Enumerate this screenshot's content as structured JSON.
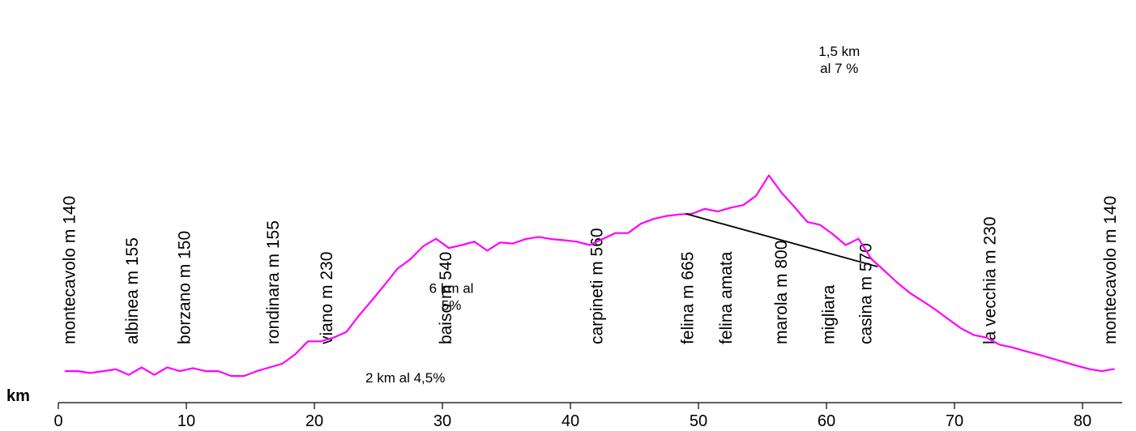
{
  "chart_data": {
    "type": "line",
    "title": "",
    "xlabel": "km",
    "ylabel": "",
    "xlim": [
      0,
      83
    ],
    "ylim": [
      0,
      1000
    ],
    "x_ticks": [
      "0",
      "10",
      "20",
      "30",
      "40",
      "50",
      "60",
      "70",
      "80"
    ],
    "grid": false,
    "line_color": "#ff00ff",
    "series": [
      {
        "points": [
          [
            0.5,
            140
          ],
          [
            1.5,
            140
          ],
          [
            2.5,
            135
          ],
          [
            3.5,
            140
          ],
          [
            4.5,
            145
          ],
          [
            5.5,
            130
          ],
          [
            6.5,
            150
          ],
          [
            7.5,
            130
          ],
          [
            8.5,
            150
          ],
          [
            9.5,
            140
          ],
          [
            10.5,
            148
          ],
          [
            11.5,
            140
          ],
          [
            12.5,
            140
          ],
          [
            13.5,
            127
          ],
          [
            14.5,
            127
          ],
          [
            15.5,
            140
          ],
          [
            16.5,
            150
          ],
          [
            17.5,
            160
          ],
          [
            18.5,
            185
          ],
          [
            19.5,
            220
          ],
          [
            20.5,
            220
          ],
          [
            21.5,
            230
          ],
          [
            22.5,
            245
          ],
          [
            23.5,
            290
          ],
          [
            24.5,
            330
          ],
          [
            25.5,
            372
          ],
          [
            26.5,
            415
          ],
          [
            27.5,
            440
          ],
          [
            28.5,
            475
          ],
          [
            29.5,
            495
          ],
          [
            30.5,
            470
          ],
          [
            31.5,
            478
          ],
          [
            32.5,
            487
          ],
          [
            33.5,
            463
          ],
          [
            34.5,
            485
          ],
          [
            35.5,
            482
          ],
          [
            36.5,
            494
          ],
          [
            37.5,
            500
          ],
          [
            38.5,
            494
          ],
          [
            39.5,
            491
          ],
          [
            40.5,
            487
          ],
          [
            41.5,
            478
          ],
          [
            42.5,
            494
          ],
          [
            43.5,
            510
          ],
          [
            44.5,
            510
          ],
          [
            45.5,
            535
          ],
          [
            46.5,
            548
          ],
          [
            47.5,
            556
          ],
          [
            48.5,
            560
          ],
          [
            49.5,
            562
          ],
          [
            50.5,
            575
          ],
          [
            51.5,
            568
          ],
          [
            52.5,
            578
          ],
          [
            53.5,
            585
          ],
          [
            54.5,
            610
          ],
          [
            55.5,
            665
          ],
          [
            56.5,
            618
          ],
          [
            57.5,
            580
          ],
          [
            58.5,
            540
          ],
          [
            59.5,
            532
          ],
          [
            60.5,
            507
          ],
          [
            61.5,
            478
          ],
          [
            62.5,
            495
          ],
          [
            63.5,
            441
          ],
          [
            64.5,
            410
          ],
          [
            65.5,
            378
          ],
          [
            66.5,
            350
          ],
          [
            67.5,
            328
          ],
          [
            68.5,
            305
          ],
          [
            69.5,
            280
          ],
          [
            70.5,
            255
          ],
          [
            71.5,
            237
          ],
          [
            72.5,
            230
          ],
          [
            73.5,
            211
          ],
          [
            74.5,
            204
          ],
          [
            75.5,
            194
          ],
          [
            76.5,
            185
          ],
          [
            77.5,
            175
          ],
          [
            78.5,
            165
          ],
          [
            79.5,
            155
          ],
          [
            80.5,
            146
          ],
          [
            81.5,
            140
          ],
          [
            82.5,
            146
          ]
        ]
      }
    ],
    "reference_line": {
      "from": [
        49.0,
        562
      ],
      "to": [
        64.0,
        420
      ],
      "color": "#000000"
    },
    "place_labels": [
      {
        "text": "montecavolo m 140",
        "x": 1.3
      },
      {
        "text": "albinea m 155",
        "x": 6.2
      },
      {
        "text": "borzano m 150",
        "x": 10.3
      },
      {
        "text": "rondinara m 155",
        "x": 17.2
      },
      {
        "text": "viano m 230",
        "x": 21.4
      },
      {
        "text": "baiso m 540",
        "x": 30.7
      },
      {
        "text": "carpineti m 560",
        "x": 42.5
      },
      {
        "text": "felina m 665",
        "x": 49.6
      },
      {
        "text": "felina amata",
        "x": 52.6
      },
      {
        "text": "marola m 800",
        "x": 56.9
      },
      {
        "text": "migliara",
        "x": 60.6
      },
      {
        "text": "casina m 570",
        "x": 63.5
      },
      {
        "text": "la vecchia m 230",
        "x": 73.2
      },
      {
        "text": "montecavolo m 140",
        "x": 82.6
      }
    ],
    "notes": [
      {
        "lines": [
          "2 km al 4,5%"
        ],
        "x": 27.1,
        "y": 110
      },
      {
        "lines": [
          "6 km al",
          "5%"
        ],
        "x": 30.7,
        "y": 350
      },
      {
        "lines": [
          "1,5  km",
          "al 7 %"
        ],
        "x": 61.0,
        "y": 985
      }
    ]
  }
}
